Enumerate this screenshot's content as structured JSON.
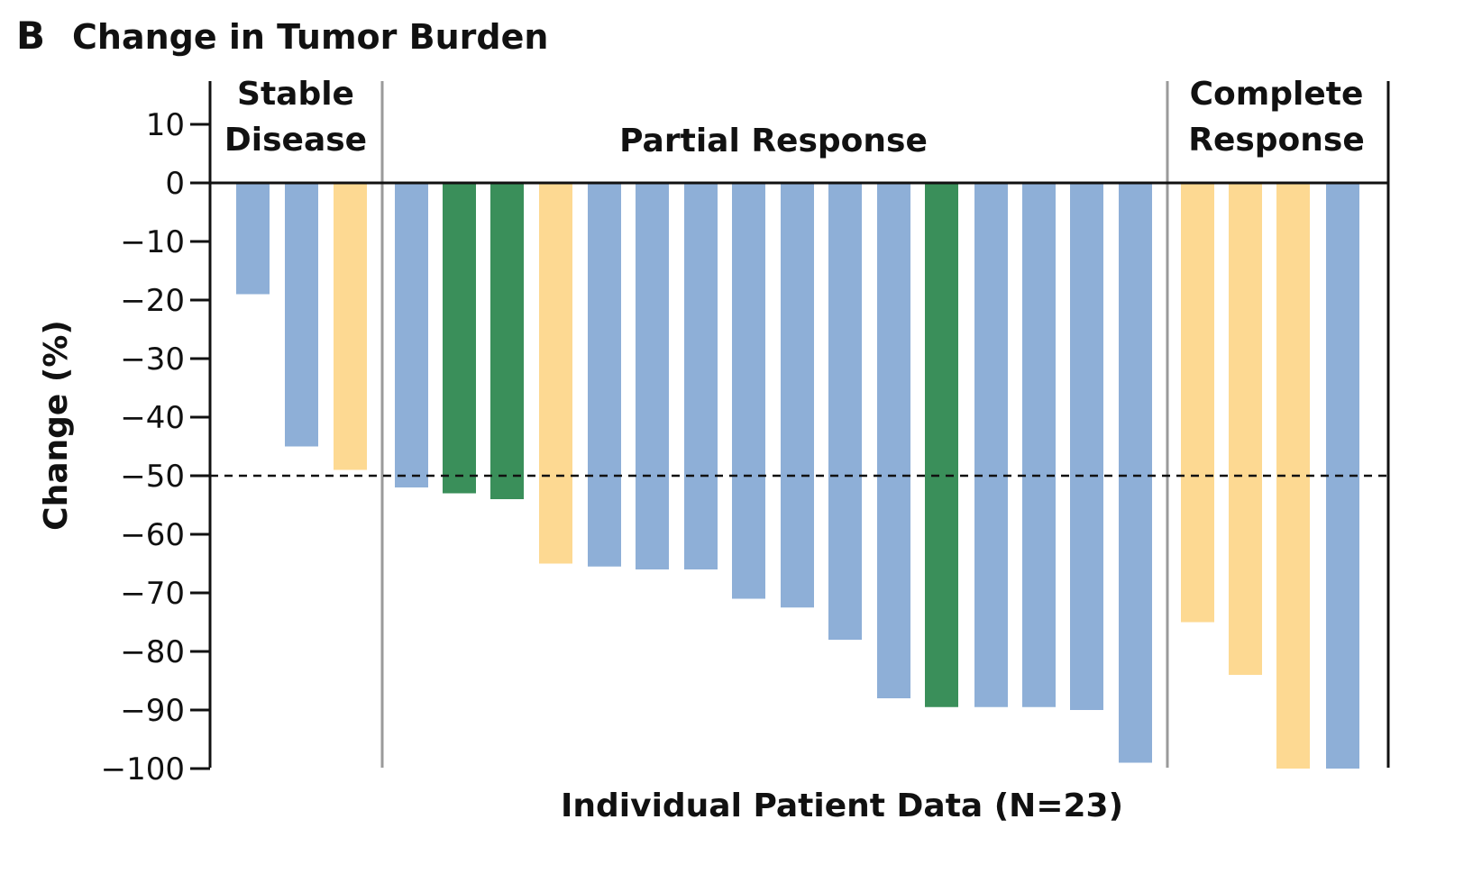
{
  "panel_letter": "B",
  "colors": {
    "blue": "#8eafd7",
    "green": "#3a8f5a",
    "yellow": "#fdd992",
    "axis": "#111111",
    "divider": "#9a9a9a"
  },
  "chart_data": {
    "type": "bar",
    "title": "Change in Tumor Burden",
    "xlabel": "Individual Patient Data (N=23)",
    "ylabel": "Change (%)",
    "ylim": [
      -100,
      15
    ],
    "yticks": [
      10,
      0,
      -10,
      -20,
      -30,
      -40,
      -50,
      -60,
      -70,
      -80,
      -90,
      -100
    ],
    "ytick_labels": [
      "10",
      "0",
      "−10",
      "−20",
      "−30",
      "−40",
      "−50",
      "−60",
      "−70",
      "−80",
      "−90",
      "−100"
    ],
    "reference_line": {
      "y": -50,
      "style": "dashed"
    },
    "grid": false,
    "sections": [
      {
        "label_lines": [
          "Stable",
          "Disease"
        ],
        "start_index": 0,
        "end_index": 2
      },
      {
        "label_lines": [
          "Partial Response"
        ],
        "start_index": 3,
        "end_index": 18
      },
      {
        "label_lines": [
          "Complete",
          "Response"
        ],
        "start_index": 19,
        "end_index": 22
      }
    ],
    "bars": [
      {
        "value": -19,
        "color": "blue"
      },
      {
        "value": -45,
        "color": "blue"
      },
      {
        "value": -49,
        "color": "yellow"
      },
      {
        "value": -52,
        "color": "blue"
      },
      {
        "value": -53,
        "color": "green"
      },
      {
        "value": -54,
        "color": "green"
      },
      {
        "value": -65,
        "color": "yellow"
      },
      {
        "value": -65.5,
        "color": "blue"
      },
      {
        "value": -66,
        "color": "blue"
      },
      {
        "value": -66,
        "color": "blue"
      },
      {
        "value": -71,
        "color": "blue"
      },
      {
        "value": -72.5,
        "color": "blue"
      },
      {
        "value": -78,
        "color": "blue"
      },
      {
        "value": -88,
        "color": "blue"
      },
      {
        "value": -89.5,
        "color": "green"
      },
      {
        "value": -89.5,
        "color": "blue"
      },
      {
        "value": -89.5,
        "color": "blue"
      },
      {
        "value": -90,
        "color": "blue"
      },
      {
        "value": -99,
        "color": "blue"
      },
      {
        "value": -75,
        "color": "yellow"
      },
      {
        "value": -84,
        "color": "yellow"
      },
      {
        "value": -100,
        "color": "yellow"
      },
      {
        "value": -100,
        "color": "blue"
      }
    ]
  }
}
